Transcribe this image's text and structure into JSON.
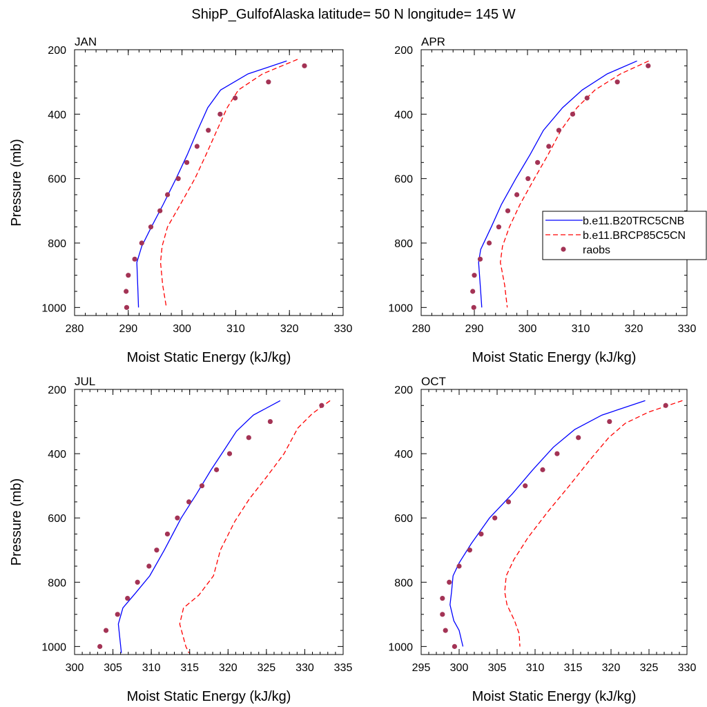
{
  "figure": {
    "title": "ShipP_GulfofAlaska  latitude= 50 N longitude= 145 W"
  },
  "legend": {
    "placement": "right-middle, overlapping APR panel",
    "entries": [
      {
        "label": "b.e11.B20TRC5CNB",
        "style": "solid",
        "color": "#0000ff"
      },
      {
        "label": "b.e11.BRCP85C5CN",
        "style": "dashed",
        "color": "#ff0000"
      },
      {
        "label": "raobs",
        "style": "marker",
        "color": "#a33355"
      }
    ]
  },
  "chart_data": [
    {
      "type": "line",
      "panel": "JAN",
      "title": "JAN",
      "xlabel": "Moist Static Energy (kJ/kg)",
      "ylabel": "Pressure (mb)",
      "xlim": [
        280,
        330
      ],
      "ylim": [
        1025,
        200
      ],
      "xticks": [
        280,
        290,
        300,
        310,
        320,
        330
      ],
      "yticks": [
        200,
        400,
        600,
        800,
        1000
      ],
      "series": [
        {
          "name": "b.e11.B20TRC5CNB",
          "style": "solid",
          "color": "#0000ff",
          "points": [
            [
              319.5,
              235
            ],
            [
              312.3,
              275
            ],
            [
              307.2,
              325
            ],
            [
              304.8,
              380
            ],
            [
              302.9,
              450
            ],
            [
              301.0,
              525
            ],
            [
              298.9,
              600
            ],
            [
              296.5,
              680
            ],
            [
              294.3,
              750
            ],
            [
              292.5,
              810
            ],
            [
              291.6,
              860
            ],
            [
              291.8,
              950
            ],
            [
              291.9,
              1000
            ]
          ]
        },
        {
          "name": "b.e11.BRCP85C5CN",
          "style": "dashed",
          "color": "#ff0000",
          "points": [
            [
              321.5,
              230
            ],
            [
              315.0,
              275
            ],
            [
              310.5,
              325
            ],
            [
              308.4,
              380
            ],
            [
              306.5,
              450
            ],
            [
              304.5,
              525
            ],
            [
              302.4,
              600
            ],
            [
              299.7,
              680
            ],
            [
              297.3,
              750
            ],
            [
              296.3,
              810
            ],
            [
              296.0,
              860
            ],
            [
              296.4,
              930
            ],
            [
              297.1,
              1000
            ]
          ]
        },
        {
          "name": "raobs",
          "style": "marker",
          "color": "#a33355",
          "points": [
            [
              322.8,
              250
            ],
            [
              316.1,
              300
            ],
            [
              309.9,
              350
            ],
            [
              307.1,
              400
            ],
            [
              304.9,
              450
            ],
            [
              302.8,
              500
            ],
            [
              300.9,
              550
            ],
            [
              299.3,
              600
            ],
            [
              297.3,
              650
            ],
            [
              295.9,
              700
            ],
            [
              294.2,
              750
            ],
            [
              292.5,
              800
            ],
            [
              291.2,
              850
            ],
            [
              290.0,
              900
            ],
            [
              289.6,
              950
            ],
            [
              289.7,
              1000
            ]
          ]
        }
      ]
    },
    {
      "type": "line",
      "panel": "APR",
      "title": "APR",
      "xlabel": "Moist Static Energy (kJ/kg)",
      "ylabel": "",
      "xlim": [
        280,
        330
      ],
      "ylim": [
        1025,
        200
      ],
      "xticks": [
        280,
        290,
        300,
        310,
        320,
        330
      ],
      "yticks": [
        200,
        400,
        600,
        800,
        1000
      ],
      "series": [
        {
          "name": "b.e11.B20TRC5CNB",
          "style": "solid",
          "color": "#0000ff",
          "points": [
            [
              320.6,
              235
            ],
            [
              315.0,
              275
            ],
            [
              310.3,
              325
            ],
            [
              306.6,
              380
            ],
            [
              303.0,
              450
            ],
            [
              300.5,
              525
            ],
            [
              297.8,
              600
            ],
            [
              295.1,
              680
            ],
            [
              293.2,
              750
            ],
            [
              291.2,
              820
            ],
            [
              290.8,
              860
            ],
            [
              291.2,
              950
            ],
            [
              291.4,
              1000
            ]
          ]
        },
        {
          "name": "b.e11.BRCP85C5CN",
          "style": "dashed",
          "color": "#ff0000",
          "points": [
            [
              322.8,
              235
            ],
            [
              317.5,
              275
            ],
            [
              312.7,
              325
            ],
            [
              309.3,
              380
            ],
            [
              306.3,
              450
            ],
            [
              303.9,
              525
            ],
            [
              301.3,
              600
            ],
            [
              298.6,
              680
            ],
            [
              296.6,
              750
            ],
            [
              295.3,
              810
            ],
            [
              294.9,
              860
            ],
            [
              295.7,
              930
            ],
            [
              296.2,
              1000
            ]
          ]
        },
        {
          "name": "raobs",
          "style": "marker",
          "color": "#a33355",
          "points": [
            [
              322.7,
              250
            ],
            [
              316.9,
              300
            ],
            [
              311.2,
              350
            ],
            [
              308.5,
              400
            ],
            [
              305.9,
              450
            ],
            [
              304.0,
              500
            ],
            [
              301.9,
              550
            ],
            [
              300.1,
              600
            ],
            [
              298.0,
              650
            ],
            [
              296.3,
              700
            ],
            [
              294.6,
              750
            ],
            [
              292.8,
              800
            ],
            [
              291.1,
              850
            ],
            [
              290.0,
              900
            ],
            [
              289.7,
              950
            ],
            [
              289.9,
              1000
            ]
          ]
        }
      ]
    },
    {
      "type": "line",
      "panel": "JUL",
      "title": "JUL",
      "xlabel": "Moist Static Energy (kJ/kg)",
      "ylabel": "Pressure (mb)",
      "xlim": [
        300,
        335
      ],
      "ylim": [
        1025,
        200
      ],
      "xticks": [
        300,
        305,
        310,
        315,
        320,
        325,
        330,
        335
      ],
      "yticks": [
        200,
        400,
        600,
        800,
        1000
      ],
      "series": [
        {
          "name": "b.e11.B20TRC5CNB",
          "style": "solid",
          "color": "#0000ff",
          "points": [
            [
              326.8,
              235
            ],
            [
              323.3,
              280
            ],
            [
              321.1,
              330
            ],
            [
              319.6,
              385
            ],
            [
              317.8,
              450
            ],
            [
              315.9,
              525
            ],
            [
              313.9,
              600
            ],
            [
              311.7,
              700
            ],
            [
              309.8,
              780
            ],
            [
              307.9,
              835
            ],
            [
              306.3,
              880
            ],
            [
              305.7,
              930
            ],
            [
              306.1,
              1020
            ]
          ]
        },
        {
          "name": "b.e11.BRCP85C5CN",
          "style": "dashed",
          "color": "#ff0000",
          "points": [
            [
              333.3,
              235
            ],
            [
              331.0,
              275
            ],
            [
              329.1,
              320
            ],
            [
              327.3,
              400
            ],
            [
              325.1,
              470
            ],
            [
              322.8,
              540
            ],
            [
              320.9,
              610
            ],
            [
              319.0,
              700
            ],
            [
              318.1,
              780
            ],
            [
              316.2,
              840
            ],
            [
              314.2,
              880
            ],
            [
              313.7,
              930
            ],
            [
              314.5,
              1000
            ],
            [
              314.9,
              1020
            ]
          ]
        },
        {
          "name": "raobs",
          "style": "marker",
          "color": "#a33355",
          "points": [
            [
              332.2,
              250
            ],
            [
              325.5,
              300
            ],
            [
              322.7,
              350
            ],
            [
              320.2,
              400
            ],
            [
              318.5,
              450
            ],
            [
              316.6,
              500
            ],
            [
              314.9,
              550
            ],
            [
              313.4,
              600
            ],
            [
              312.1,
              650
            ],
            [
              310.7,
              700
            ],
            [
              309.7,
              750
            ],
            [
              308.2,
              800
            ],
            [
              306.9,
              850
            ],
            [
              305.6,
              900
            ],
            [
              304.1,
              950
            ],
            [
              303.3,
              1000
            ]
          ]
        }
      ]
    },
    {
      "type": "line",
      "panel": "OCT",
      "title": "OCT",
      "xlabel": "Moist Static Energy (kJ/kg)",
      "ylabel": "",
      "xlim": [
        295,
        330
      ],
      "ylim": [
        1025,
        200
      ],
      "xticks": [
        295,
        300,
        305,
        310,
        315,
        320,
        325,
        330
      ],
      "yticks": [
        200,
        400,
        600,
        800,
        1000
      ],
      "series": [
        {
          "name": "b.e11.B20TRC5CNB",
          "style": "solid",
          "color": "#0000ff",
          "points": [
            [
              324.5,
              235
            ],
            [
              318.8,
              280
            ],
            [
              315.2,
              325
            ],
            [
              312.4,
              380
            ],
            [
              309.7,
              450
            ],
            [
              307.0,
              525
            ],
            [
              304.0,
              600
            ],
            [
              301.6,
              680
            ],
            [
              300.0,
              740
            ],
            [
              299.2,
              780
            ],
            [
              299.0,
              830
            ],
            [
              298.8,
              870
            ],
            [
              299.3,
              920
            ],
            [
              300.0,
              950
            ],
            [
              300.5,
              1000
            ]
          ]
        },
        {
          "name": "b.e11.BRCP85C5CN",
          "style": "dashed",
          "color": "#ff0000",
          "points": [
            [
              329.4,
              235
            ],
            [
              325.0,
              270
            ],
            [
              321.9,
              305
            ],
            [
              319.7,
              350
            ],
            [
              317.2,
              420
            ],
            [
              314.5,
              500
            ],
            [
              311.7,
              580
            ],
            [
              309.1,
              660
            ],
            [
              307.2,
              730
            ],
            [
              306.2,
              780
            ],
            [
              306.0,
              830
            ],
            [
              306.3,
              870
            ],
            [
              307.3,
              920
            ],
            [
              307.9,
              960
            ],
            [
              308.0,
              1000
            ]
          ]
        },
        {
          "name": "raobs",
          "style": "marker",
          "color": "#a33355",
          "points": [
            [
              327.2,
              250
            ],
            [
              319.8,
              300
            ],
            [
              315.7,
              350
            ],
            [
              312.9,
              400
            ],
            [
              311.0,
              450
            ],
            [
              308.7,
              500
            ],
            [
              306.5,
              550
            ],
            [
              304.7,
              600
            ],
            [
              302.9,
              650
            ],
            [
              301.4,
              700
            ],
            [
              300.0,
              750
            ],
            [
              298.7,
              800
            ],
            [
              297.8,
              850
            ],
            [
              297.8,
              900
            ],
            [
              298.2,
              950
            ],
            [
              299.4,
              1000
            ]
          ]
        }
      ]
    }
  ]
}
